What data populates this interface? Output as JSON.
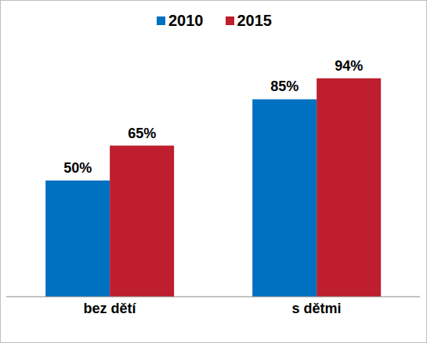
{
  "chart_data": {
    "type": "bar",
    "categories": [
      "bez dětí",
      "s dětmi"
    ],
    "series": [
      {
        "name": "2010",
        "color": "#0070c0",
        "values": [
          50,
          85
        ],
        "value_labels": [
          "50%",
          "85%"
        ]
      },
      {
        "name": "2015",
        "color": "#be1e2d",
        "values": [
          65,
          94
        ],
        "value_labels": [
          "65%",
          "94%"
        ]
      }
    ],
    "ylim": [
      0,
      100
    ],
    "legend": "top",
    "data_labels": true,
    "tick_labels": "x",
    "grid": false
  }
}
